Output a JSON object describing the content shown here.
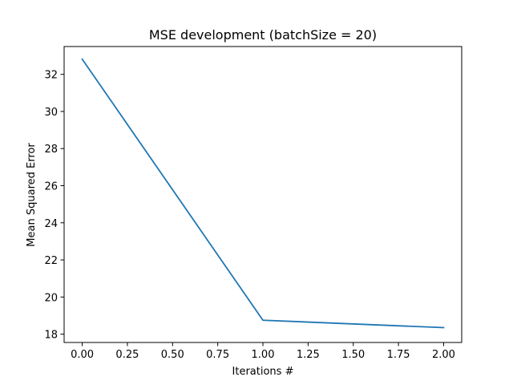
{
  "chart_data": {
    "type": "line",
    "title": "MSE development (batchSize = 20)",
    "xlabel": "Iterations #",
    "ylabel": "Mean Squared Error",
    "xlim": [
      -0.1,
      2.1
    ],
    "ylim": [
      17.55,
      33.5
    ],
    "xticks": [
      0.0,
      0.25,
      0.5,
      0.75,
      1.0,
      1.25,
      1.5,
      1.75,
      2.0
    ],
    "xtick_labels": [
      "0.00",
      "0.25",
      "0.50",
      "0.75",
      "1.00",
      "1.25",
      "1.50",
      "1.75",
      "2.00"
    ],
    "yticks": [
      18,
      20,
      22,
      24,
      26,
      28,
      30,
      32
    ],
    "ytick_labels": [
      "18",
      "20",
      "22",
      "24",
      "26",
      "28",
      "30",
      "32"
    ],
    "grid": false,
    "series": [
      {
        "x": [
          0,
          1,
          2
        ],
        "y": [
          32.82,
          18.75,
          18.35
        ],
        "color": "#1f77b4"
      }
    ]
  }
}
